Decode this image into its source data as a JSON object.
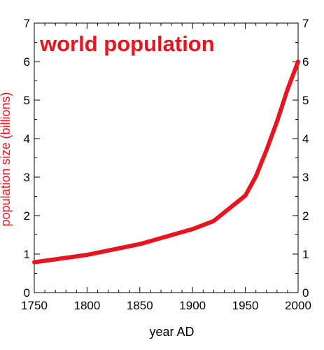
{
  "chart_data": {
    "type": "line",
    "title": "world population",
    "xlabel": "year AD",
    "ylabel": "population  size (billions)",
    "xlim": [
      1750,
      2000
    ],
    "ylim": [
      0,
      7
    ],
    "x_ticks": [
      1750,
      1800,
      1850,
      1900,
      1950,
      2000
    ],
    "y_ticks": [
      0,
      1,
      2,
      3,
      4,
      5,
      6,
      7
    ],
    "grid": false,
    "legend": "none",
    "colors": {
      "series": "#e8141e",
      "title": "#e8141e",
      "ylabel": "#e8141e",
      "axes": "#000000"
    },
    "series": [
      {
        "x": [
          1750,
          1800,
          1850,
          1900,
          1920,
          1950,
          1960,
          1970,
          1980,
          1990,
          2000
        ],
        "y": [
          0.79,
          0.98,
          1.26,
          1.65,
          1.86,
          2.52,
          3.02,
          3.7,
          4.44,
          5.28,
          6.0
        ]
      }
    ]
  }
}
